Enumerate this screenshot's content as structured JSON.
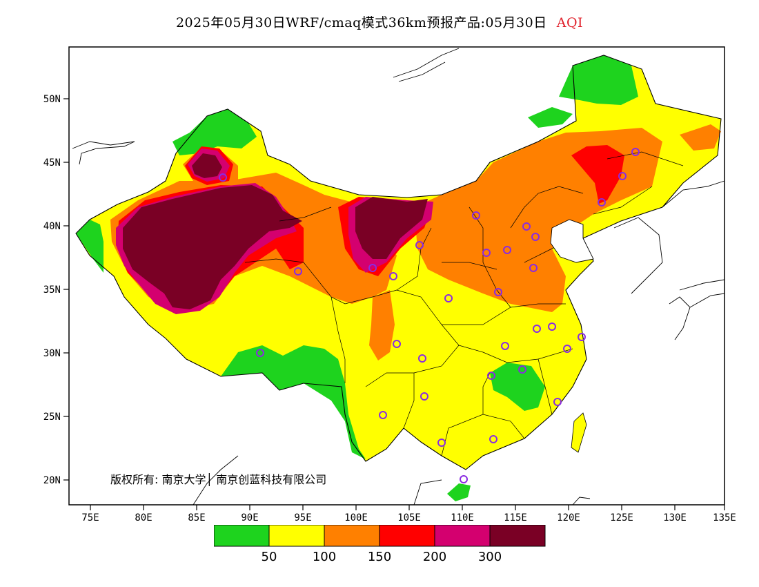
{
  "title": {
    "main": "2025年05月30日WRF/cmaq模式36km预报产品:05月30日",
    "variable": "AQI"
  },
  "axes": {
    "lat_labels": [
      "50N",
      "45N",
      "40N",
      "35N",
      "30N",
      "25N",
      "20N"
    ],
    "lon_labels": [
      "75E",
      "80E",
      "85E",
      "90E",
      "95E",
      "100E",
      "105E",
      "110E",
      "115E",
      "120E",
      "125E",
      "130E",
      "135E"
    ]
  },
  "copyright": "版权所有: 南京大学│ 南京创蓝科技有限公司",
  "legend": {
    "colors": [
      "#1ed31e",
      "#ffff00",
      "#ff8000",
      "#ff0000",
      "#d4006f",
      "#7a0025"
    ],
    "ticks": [
      "50",
      "100",
      "150",
      "200",
      "300"
    ]
  },
  "colors": {
    "good": "#1ed31e",
    "moderate": "#ffff00",
    "usg": "#ff8000",
    "unhealthy": "#ff0000",
    "very_unhealthy": "#d4006f",
    "hazardous": "#7a0025",
    "station_marker": "#8a2be2"
  }
}
